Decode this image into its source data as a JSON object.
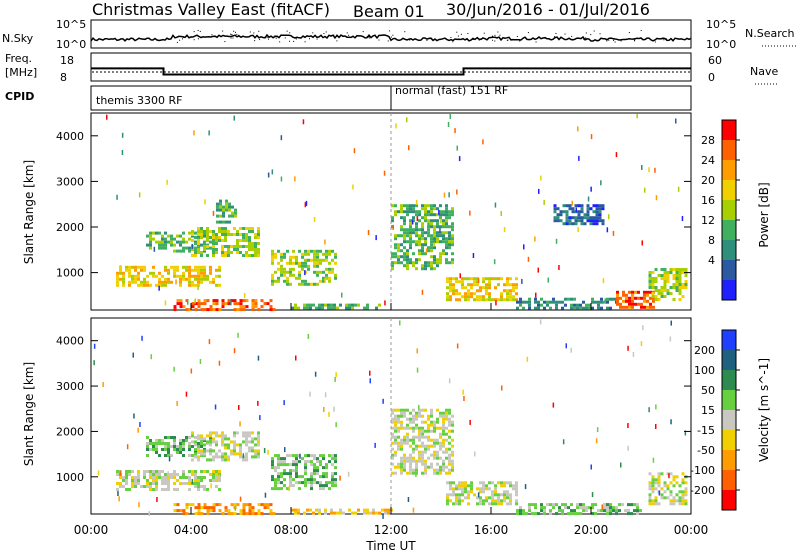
{
  "header": {
    "title_left": "Christmas Valley East (fitACF)",
    "beam": "Beam 01",
    "date_range": "30/Jun/2016 - 01/Jul/2016"
  },
  "strip": {
    "nsky_label": "N.Sky",
    "nsky_ticks": [
      "10^5",
      "10^0"
    ],
    "nsearch_label": "N.Search",
    "freq_label_1": "Freq.",
    "freq_label_2": "[MHz]",
    "freq_ticks": [
      "18",
      "8"
    ],
    "nave_label": "Nave",
    "nave_ticks": [
      "60",
      "0"
    ],
    "cpid_label": "CPID",
    "cpid_1": "themis 3300 RF",
    "cpid_2": "normal (fast) 151 RF"
  },
  "axes": {
    "ylabel": "Slant Range [km]",
    "yticks": [
      "4000",
      "3000",
      "2000",
      "1000"
    ],
    "xlabel": "Time UT",
    "xticks": [
      "00:00",
      "04:00",
      "08:00",
      "12:00",
      "16:00",
      "20:00",
      "00:00"
    ]
  },
  "power_scale": {
    "title": "Power [dB]",
    "ticks": [
      "28",
      "24",
      "20",
      "16",
      "12",
      "8",
      "4"
    ],
    "colors": [
      "#ff0000",
      "#ff6000",
      "#ff9c00",
      "#f0d000",
      "#a8d000",
      "#40b060",
      "#2e8f7a",
      "#2c5aa0",
      "#2020ff"
    ]
  },
  "velocity_scale": {
    "title": "Velocity [m s^-1]",
    "ticks": [
      "200",
      "100",
      "50",
      "15",
      "-15",
      "-50",
      "-100",
      "-200"
    ],
    "colors": [
      "#2040ff",
      "#1f5f80",
      "#2d8a50",
      "#66d040",
      "#c8c8c0",
      "#f0d000",
      "#ff9c00",
      "#ff6000",
      "#ff0000"
    ]
  },
  "chart_data": {
    "type": "heatmap",
    "x_range_hours": [
      0,
      24
    ],
    "y_range_km": [
      180,
      4500
    ],
    "cpid_change_hour": 12.0,
    "freq_mhz": [
      {
        "start": 0,
        "end": 2.9,
        "value": 12.5
      },
      {
        "start": 2.9,
        "end": 14.9,
        "value": 10.3
      },
      {
        "start": 14.9,
        "end": 24,
        "value": 12.5
      }
    ],
    "power_patches": [
      {
        "hours": [
          3.3,
          7.3
        ],
        "km": [
          200,
          420
        ],
        "level": 7
      },
      {
        "hours": [
          8.0,
          11.5
        ],
        "km": [
          200,
          320
        ],
        "level": 3
      },
      {
        "hours": [
          1.0,
          5.2
        ],
        "km": [
          700,
          1150
        ],
        "level": 5
      },
      {
        "hours": [
          7.2,
          9.8
        ],
        "km": [
          750,
          1500
        ],
        "level": 4
      },
      {
        "hours": [
          2.2,
          4.8
        ],
        "km": [
          1500,
          1900
        ],
        "level": 3
      },
      {
        "hours": [
          4.0,
          6.7
        ],
        "km": [
          1400,
          2000
        ],
        "level": 4
      },
      {
        "hours": [
          5.0,
          5.8
        ],
        "km": [
          2100,
          2600
        ],
        "level": 3
      },
      {
        "hours": [
          12.0,
          14.5
        ],
        "km": [
          1100,
          2500
        ],
        "level": 3
      },
      {
        "hours": [
          14.2,
          17.0
        ],
        "km": [
          400,
          900
        ],
        "level": 5
      },
      {
        "hours": [
          17.0,
          21.0
        ],
        "km": [
          250,
          450
        ],
        "level": 2
      },
      {
        "hours": [
          21.0,
          22.5
        ],
        "km": [
          250,
          600
        ],
        "level": 7
      },
      {
        "hours": [
          22.3,
          23.8
        ],
        "km": [
          400,
          1100
        ],
        "level": 4
      },
      {
        "hours": [
          18.5,
          20.5
        ],
        "km": [
          2100,
          2500
        ],
        "level": 1
      }
    ],
    "velocity_patches": [
      {
        "hours": [
          3.3,
          7.3
        ],
        "km": [
          200,
          420
        ],
        "level": 6
      },
      {
        "hours": [
          1.0,
          5.2
        ],
        "km": [
          700,
          1150
        ],
        "level": 4
      },
      {
        "hours": [
          7.2,
          9.8
        ],
        "km": [
          750,
          1500
        ],
        "level": 3
      },
      {
        "hours": [
          2.2,
          4.8
        ],
        "km": [
          1500,
          1900
        ],
        "level": 3
      },
      {
        "hours": [
          4.0,
          6.7
        ],
        "km": [
          1400,
          2000
        ],
        "level": 4
      },
      {
        "hours": [
          12.0,
          14.5
        ],
        "km": [
          1100,
          2500
        ],
        "level": 4
      },
      {
        "hours": [
          14.2,
          17.0
        ],
        "km": [
          400,
          900
        ],
        "level": 4
      },
      {
        "hours": [
          17.0,
          22.0
        ],
        "km": [
          220,
          420
        ],
        "level": 3
      },
      {
        "hours": [
          22.3,
          23.8
        ],
        "km": [
          400,
          1100
        ],
        "level": 4
      },
      {
        "hours": [
          8.0,
          12.0
        ],
        "km": [
          200,
          300
        ],
        "level": 5
      }
    ]
  }
}
